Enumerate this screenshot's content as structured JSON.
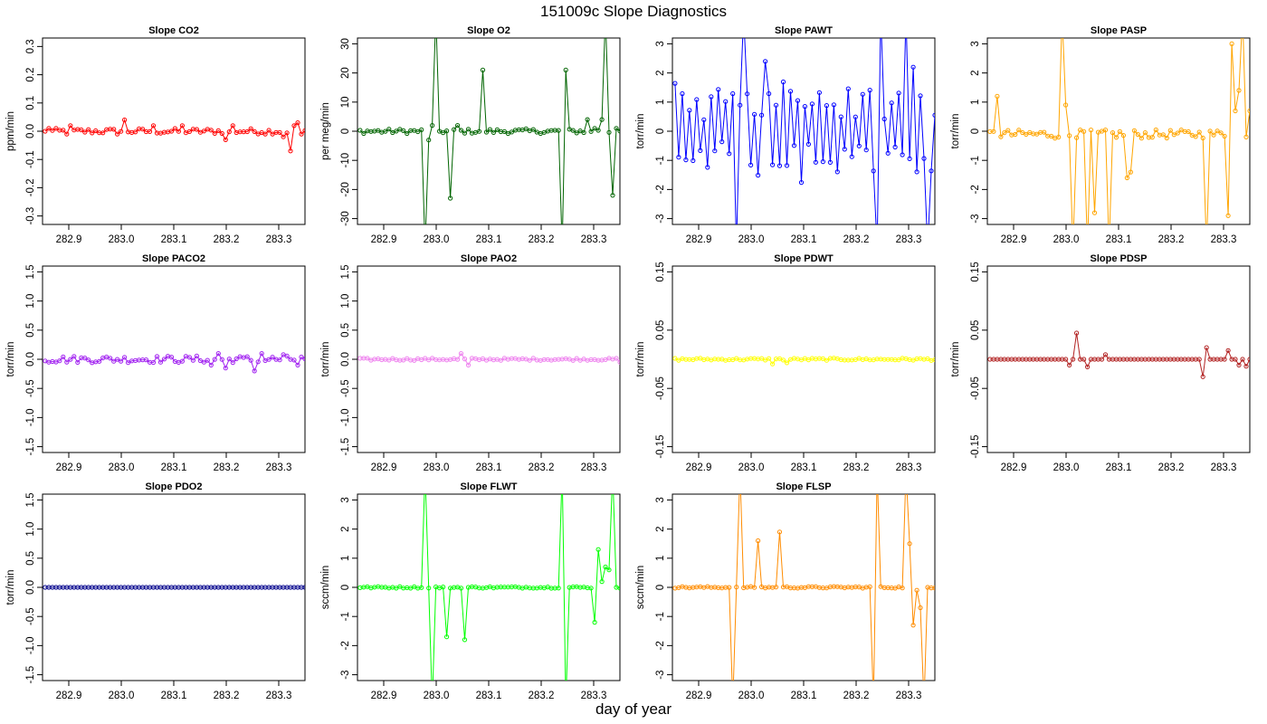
{
  "title": "151009c   Slope Diagnostics",
  "xlabel": "day of year",
  "chart_data": [
    {
      "type": "line",
      "title": "Slope CO2",
      "ylabel": "ppm/min",
      "color": "#ff0000",
      "xlim": [
        282.85,
        283.35
      ],
      "ylim": [
        -0.33,
        0.33
      ],
      "xticks": [
        "282.9",
        "283.0",
        "283.1",
        "283.2",
        "283.3"
      ],
      "yticks": [
        "-0.3",
        "-0.2",
        "-0.1",
        "0.0",
        "0.1",
        "0.2",
        "0.3"
      ],
      "baseline": 0,
      "noise": 0.01,
      "spikes": [
        {
          "i": 0,
          "v": 0
        },
        {
          "i": 1,
          "v": 0.01
        },
        {
          "i": 6,
          "v": -0.01
        },
        {
          "i": 7,
          "v": 0.02
        },
        {
          "i": 22,
          "v": 0.04
        },
        {
          "i": 20,
          "v": -0.01
        },
        {
          "i": 30,
          "v": 0.02
        },
        {
          "i": 38,
          "v": 0.02
        },
        {
          "i": 50,
          "v": -0.03
        },
        {
          "i": 52,
          "v": 0.02
        },
        {
          "i": 61,
          "v": -0.01
        },
        {
          "i": 66,
          "v": -0.02
        },
        {
          "i": 68,
          "v": -0.07
        },
        {
          "i": 69,
          "v": 0.02
        },
        {
          "i": 70,
          "v": 0.03
        },
        {
          "i": 71,
          "v": -0.01
        }
      ]
    },
    {
      "type": "line",
      "title": "Slope O2",
      "ylabel": "per meg/min",
      "color": "#006400",
      "xlim": [
        282.85,
        283.35
      ],
      "ylim": [
        -32,
        32
      ],
      "xticks": [
        "282.9",
        "283.0",
        "283.1",
        "283.2",
        "283.3"
      ],
      "yticks": [
        "-30",
        "-20",
        "-10",
        "0",
        "10",
        "20",
        "30"
      ],
      "baseline": 0,
      "noise": 0.8,
      "spikes": [
        {
          "i": 18,
          "v": -40
        },
        {
          "i": 19,
          "v": -3
        },
        {
          "i": 20,
          "v": 2
        },
        {
          "i": 21,
          "v": 40
        },
        {
          "i": 25,
          "v": -23
        },
        {
          "i": 27,
          "v": 2
        },
        {
          "i": 34,
          "v": 21
        },
        {
          "i": 56,
          "v": -40
        },
        {
          "i": 57,
          "v": 21
        },
        {
          "i": 68,
          "v": 40
        },
        {
          "i": 63,
          "v": 4
        },
        {
          "i": 65,
          "v": 1
        },
        {
          "i": 67,
          "v": 4
        },
        {
          "i": 70,
          "v": -22
        },
        {
          "i": 71,
          "v": 1
        }
      ]
    },
    {
      "type": "line",
      "title": "Slope PAWT",
      "ylabel": "torr/min",
      "color": "#0000ff",
      "xlim": [
        282.85,
        283.35
      ],
      "ylim": [
        -3.2,
        3.2
      ],
      "xticks": [
        "282.9",
        "283.0",
        "283.1",
        "283.2",
        "283.3"
      ],
      "yticks": [
        "-3",
        "-2",
        "-1",
        "0",
        "1",
        "2",
        "3"
      ],
      "baseline": 0,
      "noise": 1.2,
      "oscillate": true,
      "spikes": [
        {
          "i": 17,
          "v": -4
        },
        {
          "i": 19,
          "v": 4
        },
        {
          "i": 25,
          "v": 2.4
        },
        {
          "i": 56,
          "v": -4
        },
        {
          "i": 57,
          "v": 4
        },
        {
          "i": 64,
          "v": 4
        },
        {
          "i": 66,
          "v": 2.2
        },
        {
          "i": 70,
          "v": -4
        },
        {
          "i": 72,
          "v": 0.55
        }
      ]
    },
    {
      "type": "line",
      "title": "Slope PASP",
      "ylabel": "torr/min",
      "color": "#ffa500",
      "xlim": [
        282.85,
        283.35
      ],
      "ylim": [
        -3.2,
        3.2
      ],
      "xticks": [
        "282.9",
        "283.0",
        "283.1",
        "283.2",
        "283.3"
      ],
      "yticks": [
        "-3",
        "-2",
        "-1",
        "0",
        "1",
        "2",
        "3"
      ],
      "baseline": -0.1,
      "noise": 0.15,
      "spikes": [
        {
          "i": 2,
          "v": 1.2
        },
        {
          "i": 20,
          "v": 4
        },
        {
          "i": 21,
          "v": 0.9
        },
        {
          "i": 23,
          "v": -4
        },
        {
          "i": 27,
          "v": -4
        },
        {
          "i": 29,
          "v": -2.8
        },
        {
          "i": 33,
          "v": -4
        },
        {
          "i": 38,
          "v": -1.6
        },
        {
          "i": 39,
          "v": -1.4
        },
        {
          "i": 60,
          "v": -4
        },
        {
          "i": 66,
          "v": -2.9
        },
        {
          "i": 67,
          "v": 3
        },
        {
          "i": 68,
          "v": 0.7
        },
        {
          "i": 69,
          "v": 1.4
        },
        {
          "i": 70,
          "v": 4
        },
        {
          "i": 71,
          "v": -0.2
        },
        {
          "i": 72,
          "v": 0.7
        }
      ]
    },
    {
      "type": "line",
      "title": "Slope PACO2",
      "ylabel": "torr/min",
      "color": "#a020f0",
      "xlim": [
        282.85,
        283.35
      ],
      "ylim": [
        -1.6,
        1.6
      ],
      "xticks": [
        "282.9",
        "283.0",
        "283.1",
        "283.2",
        "283.3"
      ],
      "yticks": [
        "-1.5",
        "-1.0",
        "-0.5",
        "0.0",
        "0.5",
        "1.0",
        "1.5"
      ],
      "baseline": 0,
      "noise": 0.06,
      "spikes": [
        {
          "i": 46,
          "v": -0.1
        },
        {
          "i": 48,
          "v": 0.1
        },
        {
          "i": 50,
          "v": -0.15
        },
        {
          "i": 58,
          "v": -0.2
        },
        {
          "i": 60,
          "v": 0.1
        },
        {
          "i": 66,
          "v": 0.08
        },
        {
          "i": 70,
          "v": -0.1
        }
      ]
    },
    {
      "type": "line",
      "title": "Slope PAO2",
      "ylabel": "torr/min",
      "color": "#ee82ee",
      "xlim": [
        282.85,
        283.35
      ],
      "ylim": [
        -1.6,
        1.6
      ],
      "xticks": [
        "282.9",
        "283.0",
        "283.1",
        "283.2",
        "283.3"
      ],
      "yticks": [
        "-1.5",
        "-1.0",
        "-0.5",
        "0.0",
        "0.5",
        "1.0",
        "1.5"
      ],
      "baseline": 0,
      "noise": 0.02,
      "spikes": [
        {
          "i": 28,
          "v": 0.1
        },
        {
          "i": 30,
          "v": -0.1
        },
        {
          "i": 72,
          "v": -0.05
        }
      ]
    },
    {
      "type": "line",
      "title": "Slope PDWT",
      "ylabel": "torr/min",
      "color": "#ffff00",
      "xlim": [
        282.85,
        283.35
      ],
      "ylim": [
        -0.16,
        0.16
      ],
      "xticks": [
        "282.9",
        "283.0",
        "283.1",
        "283.2",
        "283.3"
      ],
      "yticks": [
        "-0.15",
        "-0.05",
        "0.05",
        "0.15"
      ],
      "baseline": 0,
      "noise": 0.002,
      "spikes": [
        {
          "i": 27,
          "v": -0.008
        },
        {
          "i": 31,
          "v": -0.006
        }
      ]
    },
    {
      "type": "line",
      "title": "Slope PDSP",
      "ylabel": "torr/min",
      "color": "#b22222",
      "xlim": [
        282.85,
        283.35
      ],
      "ylim": [
        -0.16,
        0.16
      ],
      "xticks": [
        "282.9",
        "283.0",
        "283.1",
        "283.2",
        "283.3"
      ],
      "yticks": [
        "-0.15",
        "-0.05",
        "0.05",
        "0.15"
      ],
      "baseline": 0,
      "noise": 0.0,
      "spikes": [
        {
          "i": 22,
          "v": -0.01
        },
        {
          "i": 24,
          "v": 0.045
        },
        {
          "i": 27,
          "v": -0.013
        },
        {
          "i": 32,
          "v": 0.008
        },
        {
          "i": 59,
          "v": -0.03
        },
        {
          "i": 60,
          "v": 0.02
        },
        {
          "i": 66,
          "v": 0.015
        },
        {
          "i": 69,
          "v": -0.01
        },
        {
          "i": 71,
          "v": -0.012
        }
      ]
    },
    {
      "type": "line",
      "title": "Slope PDO2",
      "ylabel": "torr/min",
      "color": "#00008b",
      "xlim": [
        282.85,
        283.35
      ],
      "ylim": [
        -1.6,
        1.6
      ],
      "xticks": [
        "282.9",
        "283.0",
        "283.1",
        "283.2",
        "283.3"
      ],
      "yticks": [
        "-1.5",
        "-1.0",
        "-0.5",
        "0.0",
        "0.5",
        "1.0",
        "1.5"
      ],
      "baseline": 0,
      "noise": 0.0,
      "spikes": []
    },
    {
      "type": "line",
      "title": "Slope FLWT",
      "ylabel": "sccm/min",
      "color": "#00ff00",
      "xlim": [
        282.85,
        283.35
      ],
      "ylim": [
        -3.2,
        3.2
      ],
      "xticks": [
        "282.9",
        "283.0",
        "283.1",
        "283.2",
        "283.3"
      ],
      "yticks": [
        "-3",
        "-2",
        "-1",
        "0",
        "1",
        "2",
        "3"
      ],
      "baseline": 0,
      "noise": 0.03,
      "spikes": [
        {
          "i": 18,
          "v": 4
        },
        {
          "i": 20,
          "v": -4
        },
        {
          "i": 24,
          "v": -1.7
        },
        {
          "i": 29,
          "v": -1.8
        },
        {
          "i": 56,
          "v": 4
        },
        {
          "i": 57,
          "v": -4
        },
        {
          "i": 65,
          "v": -1.2
        },
        {
          "i": 66,
          "v": 1.3
        },
        {
          "i": 67,
          "v": 0.2
        },
        {
          "i": 68,
          "v": 0.7
        },
        {
          "i": 69,
          "v": 0.6
        },
        {
          "i": 70,
          "v": 4
        },
        {
          "i": 71,
          "v": 0
        }
      ]
    },
    {
      "type": "line",
      "title": "Slope FLSP",
      "ylabel": "sccm/min",
      "color": "#ff8c00",
      "xlim": [
        282.85,
        283.35
      ],
      "ylim": [
        -3.2,
        3.2
      ],
      "xticks": [
        "282.9",
        "283.0",
        "283.1",
        "283.2",
        "283.3"
      ],
      "yticks": [
        "-3",
        "-2",
        "-1",
        "0",
        "1",
        "2",
        "3"
      ],
      "baseline": 0,
      "noise": 0.03,
      "spikes": [
        {
          "i": 16,
          "v": -4
        },
        {
          "i": 18,
          "v": 4
        },
        {
          "i": 23,
          "v": 1.6
        },
        {
          "i": 29,
          "v": 1.9
        },
        {
          "i": 55,
          "v": -4
        },
        {
          "i": 56,
          "v": 4
        },
        {
          "i": 64,
          "v": 4
        },
        {
          "i": 65,
          "v": 1.5
        },
        {
          "i": 66,
          "v": -1.3
        },
        {
          "i": 67,
          "v": -0.1
        },
        {
          "i": 68,
          "v": -0.7
        },
        {
          "i": 69,
          "v": -4
        },
        {
          "i": 70,
          "v": 0
        }
      ]
    }
  ]
}
